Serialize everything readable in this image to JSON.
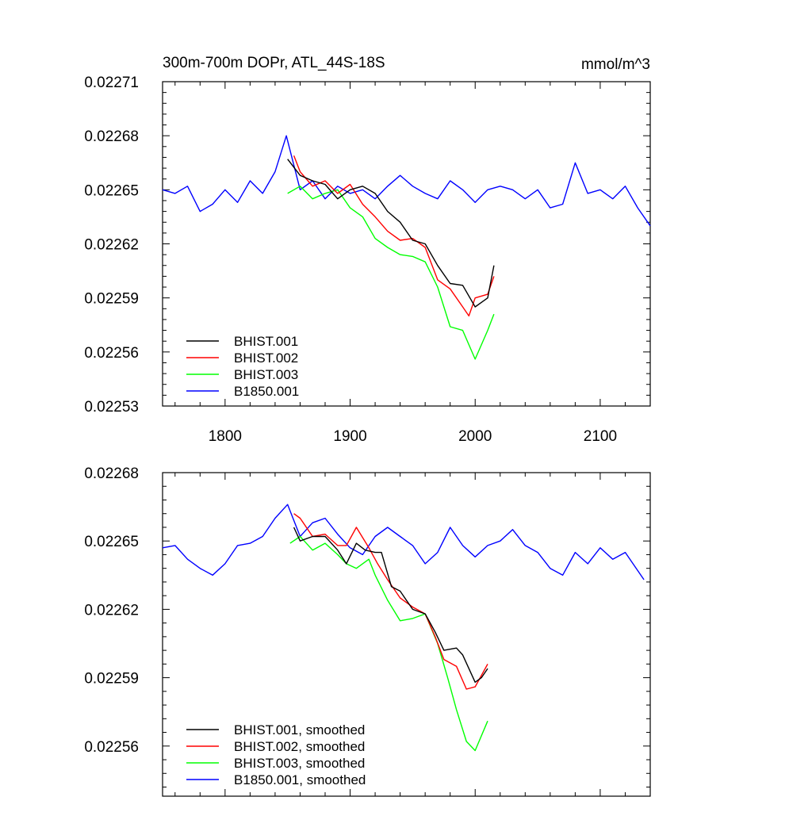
{
  "chart_data": [
    {
      "type": "line",
      "title": "300m-700m DOPr, ATL_44S-18S",
      "units": "mmol/m^3",
      "xlabel": "",
      "ylabel": "",
      "xlim": [
        1750,
        2140
      ],
      "ylim": [
        0.02253,
        0.02271
      ],
      "xticks": [
        1800,
        1900,
        2000,
        2100
      ],
      "xtick_labels": [
        "1800",
        "1900",
        "2000",
        "2100"
      ],
      "yticks": [
        0.02253,
        0.02256,
        0.02259,
        0.02262,
        0.02265,
        0.02268,
        0.02271
      ],
      "ytick_labels": [
        "0.02253",
        "0.02256",
        "0.02259",
        "0.02262",
        "0.02265",
        "0.02268",
        "0.02271"
      ],
      "legend_position": "bottom-left",
      "series": [
        {
          "name": "BHIST.001",
          "color": "#000000",
          "x": [
            1850,
            1860,
            1870,
            1880,
            1890,
            1900,
            1910,
            1920,
            1930,
            1940,
            1950,
            1960,
            1970,
            1980,
            1990,
            2000,
            2010,
            2015
          ],
          "y": [
            0.022667,
            0.022658,
            0.022655,
            0.022653,
            0.022645,
            0.02265,
            0.022652,
            0.022648,
            0.022638,
            0.022632,
            0.022622,
            0.02262,
            0.022608,
            0.022598,
            0.022597,
            0.022585,
            0.02259,
            0.022608
          ]
        },
        {
          "name": "BHIST.002",
          "color": "#ff0000",
          "x": [
            1855,
            1860,
            1870,
            1880,
            1890,
            1900,
            1910,
            1920,
            1930,
            1940,
            1950,
            1960,
            1970,
            1980,
            1990,
            1995,
            2000,
            2010,
            2015
          ],
          "y": [
            0.022669,
            0.02266,
            0.022652,
            0.022655,
            0.022648,
            0.022653,
            0.022642,
            0.022635,
            0.022627,
            0.022622,
            0.022623,
            0.022618,
            0.0226,
            0.022595,
            0.022585,
            0.02258,
            0.02259,
            0.022592,
            0.022602
          ]
        },
        {
          "name": "BHIST.003",
          "color": "#00ff00",
          "x": [
            1850,
            1860,
            1870,
            1880,
            1890,
            1900,
            1910,
            1920,
            1930,
            1940,
            1950,
            1960,
            1970,
            1980,
            1990,
            2000,
            2010,
            2015
          ],
          "y": [
            0.022648,
            0.022652,
            0.022645,
            0.022648,
            0.02265,
            0.02264,
            0.022635,
            0.022623,
            0.022618,
            0.022614,
            0.022613,
            0.02261,
            0.022596,
            0.022574,
            0.022572,
            0.022556,
            0.022572,
            0.022581
          ]
        },
        {
          "name": "B1850.001",
          "color": "#0000ff",
          "x": [
            1750,
            1760,
            1770,
            1780,
            1790,
            1800,
            1810,
            1820,
            1830,
            1840,
            1849,
            1860,
            1870,
            1880,
            1890,
            1900,
            1910,
            1920,
            1930,
            1940,
            1950,
            1960,
            1970,
            1980,
            1990,
            2000,
            2010,
            2020,
            2030,
            2040,
            2050,
            2060,
            2070,
            2080,
            2090,
            2100,
            2110,
            2120,
            2130,
            2140
          ],
          "y": [
            0.02265,
            0.022648,
            0.022652,
            0.022638,
            0.022642,
            0.02265,
            0.022643,
            0.022655,
            0.022648,
            0.02266,
            0.02268,
            0.02265,
            0.022655,
            0.022645,
            0.022652,
            0.022648,
            0.02265,
            0.022645,
            0.022652,
            0.022658,
            0.022652,
            0.022648,
            0.022645,
            0.022655,
            0.02265,
            0.022643,
            0.02265,
            0.022652,
            0.02265,
            0.022645,
            0.02265,
            0.02264,
            0.022642,
            0.022665,
            0.022648,
            0.02265,
            0.022645,
            0.022652,
            0.02264,
            0.02263
          ]
        }
      ]
    },
    {
      "type": "line",
      "title": "",
      "units": "",
      "xlabel": "",
      "ylabel": "",
      "xlim": [
        1750,
        2140
      ],
      "ylim": [
        0.022538,
        0.02268
      ],
      "xticks": [
        1800,
        1900,
        2000,
        2100
      ],
      "xtick_labels": [],
      "yticks": [
        0.02256,
        0.02259,
        0.02262,
        0.02265,
        0.02268
      ],
      "ytick_labels": [
        "0.02256",
        "0.02259",
        "0.02262",
        "0.02265",
        "0.02268"
      ],
      "legend_position": "bottom-left",
      "series": [
        {
          "name": "BHIST.001, smoothed",
          "color": "#000000",
          "x": [
            1855,
            1860,
            1870,
            1880,
            1890,
            1897,
            1905,
            1912,
            1920,
            1925,
            1933,
            1940,
            1950,
            1960,
            1968,
            1975,
            1985,
            1990,
            2000,
            2005,
            2010
          ],
          "y": [
            0.022656,
            0.02265,
            0.022652,
            0.022652,
            0.022646,
            0.02264,
            0.022649,
            0.022646,
            0.022645,
            0.022645,
            0.02263,
            0.022628,
            0.02262,
            0.022618,
            0.02261,
            0.022602,
            0.022603,
            0.0226,
            0.022588,
            0.02259,
            0.022594
          ]
        },
        {
          "name": "BHIST.002, smoothed",
          "color": "#ff0000",
          "x": [
            1855,
            1860,
            1870,
            1880,
            1890,
            1897,
            1905,
            1915,
            1922,
            1930,
            1940,
            1950,
            1960,
            1968,
            1975,
            1985,
            1993,
            2000,
            2010
          ],
          "y": [
            0.022662,
            0.02266,
            0.022652,
            0.022653,
            0.022648,
            0.022648,
            0.022656,
            0.022647,
            0.02264,
            0.022633,
            0.022625,
            0.022621,
            0.022618,
            0.022608,
            0.022598,
            0.022595,
            0.022585,
            0.022586,
            0.022596
          ]
        },
        {
          "name": "BHIST.003, smoothed",
          "color": "#00ff00",
          "x": [
            1852,
            1860,
            1870,
            1880,
            1890,
            1897,
            1905,
            1915,
            1920,
            1930,
            1940,
            1950,
            1960,
            1970,
            1978,
            1985,
            1993,
            2000,
            2010
          ],
          "y": [
            0.022649,
            0.022652,
            0.022646,
            0.022649,
            0.022644,
            0.02264,
            0.022638,
            0.022642,
            0.022635,
            0.022624,
            0.022615,
            0.022616,
            0.022618,
            0.022605,
            0.02259,
            0.022576,
            0.022562,
            0.022558,
            0.022571
          ]
        },
        {
          "name": "B1850.001, smoothed",
          "color": "#0000ff",
          "x": [
            1750,
            1760,
            1770,
            1780,
            1790,
            1800,
            1810,
            1820,
            1830,
            1840,
            1850,
            1860,
            1870,
            1880,
            1890,
            1900,
            1910,
            1920,
            1930,
            1940,
            1950,
            1960,
            1970,
            1980,
            1990,
            2000,
            2010,
            2020,
            2030,
            2040,
            2050,
            2060,
            2070,
            2080,
            2090,
            2100,
            2110,
            2120,
            2130,
            2135
          ],
          "y": [
            0.022647,
            0.022648,
            0.022642,
            0.022638,
            0.022635,
            0.02264,
            0.022648,
            0.022649,
            0.022652,
            0.02266,
            0.022666,
            0.022652,
            0.022658,
            0.02266,
            0.022653,
            0.022647,
            0.022644,
            0.022652,
            0.022656,
            0.022652,
            0.022648,
            0.02264,
            0.022645,
            0.022656,
            0.022648,
            0.022643,
            0.022648,
            0.02265,
            0.022655,
            0.022648,
            0.022645,
            0.022638,
            0.022635,
            0.022645,
            0.02264,
            0.022647,
            0.022642,
            0.022645,
            0.022637,
            0.022633
          ]
        }
      ]
    }
  ]
}
